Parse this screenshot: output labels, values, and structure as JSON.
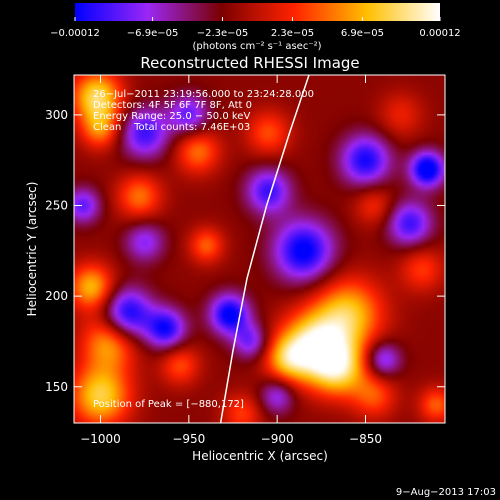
{
  "chart_data": {
    "type": "heatmap",
    "title": "Reconstructed RHESSI Image",
    "xlabel": "Heliocentric X (arcsec)",
    "ylabel": "Heliocentric Y (arcsec)",
    "xlim": [
      -1015,
      -805
    ],
    "ylim": [
      130,
      322
    ],
    "x_ticks": [
      -1000,
      -950,
      -900,
      -850
    ],
    "x_tick_labels": [
      "−1000",
      "−950",
      "−900",
      "−850"
    ],
    "y_ticks": [
      150,
      200,
      250,
      300
    ],
    "y_tick_labels": [
      "150",
      "200",
      "250",
      "300"
    ],
    "colorbar": {
      "range": [
        -0.00012,
        0.00012
      ],
      "ticks": [
        -0.00012,
        -6.9e-05,
        -2.3e-05,
        2.3e-05,
        6.9e-05,
        0.00012
      ],
      "tick_labels": [
        "−0.00012",
        "−6.9e−05",
        "−2.3e−05",
        "2.3e−05",
        "6.9e−05",
        "0.00012"
      ],
      "units_label": "(photons cm⁻² s⁻¹ asec⁻²)",
      "colors": [
        "#0000ff",
        "#9b27f5",
        "#7a0000",
        "#ff2200",
        "#ffbf00",
        "#ffffff"
      ]
    },
    "annotations": [
      "26−Jul−2011 23:19:56.000 to 23:24:28.000",
      "Detectors: 4F 5F 6F 7F 8F, Att 0",
      "Energy Range: 25.0 − 50.0 keV",
      "Clean    Total counts: 7.46E+03"
    ],
    "peak_label": "Position of Peak = [−880,172]",
    "peak": [
      -880,
      172
    ],
    "limb_curve": [
      [
        -932,
        130
      ],
      [
        -925,
        170
      ],
      [
        -917,
        210
      ],
      [
        -906,
        250
      ],
      [
        -893,
        290
      ],
      [
        -882,
        322
      ]
    ],
    "sources": [
      {
        "x": -880,
        "y": 172,
        "amp": 1.0,
        "sigma": 13
      },
      {
        "x": -860,
        "y": 190,
        "amp": 0.8,
        "sigma": 14
      },
      {
        "x": -865,
        "y": 160,
        "amp": 0.8,
        "sigma": 11
      },
      {
        "x": -895,
        "y": 165,
        "amp": 0.55,
        "sigma": 9
      },
      {
        "x": -1000,
        "y": 145,
        "amp": 0.85,
        "sigma": 12
      },
      {
        "x": -995,
        "y": 175,
        "amp": 0.7,
        "sigma": 11
      },
      {
        "x": -1005,
        "y": 205,
        "amp": 0.75,
        "sigma": 9
      },
      {
        "x": -1002,
        "y": 310,
        "amp": 0.9,
        "sigma": 10
      },
      {
        "x": -1000,
        "y": 292,
        "amp": 0.55,
        "sigma": 8
      },
      {
        "x": -978,
        "y": 255,
        "amp": 0.55,
        "sigma": 9
      },
      {
        "x": -945,
        "y": 280,
        "amp": 0.55,
        "sigma": 9
      },
      {
        "x": -940,
        "y": 228,
        "amp": 0.5,
        "sigma": 7
      },
      {
        "x": -955,
        "y": 162,
        "amp": 0.45,
        "sigma": 8
      },
      {
        "x": -905,
        "y": 290,
        "amp": 0.45,
        "sigma": 9
      },
      {
        "x": -845,
        "y": 250,
        "amp": 0.35,
        "sigma": 8
      },
      {
        "x": -818,
        "y": 215,
        "amp": 0.4,
        "sigma": 9
      },
      {
        "x": -845,
        "y": 145,
        "amp": 0.45,
        "sigma": 9
      },
      {
        "x": -810,
        "y": 140,
        "amp": 0.5,
        "sigma": 7
      },
      {
        "x": -830,
        "y": 300,
        "amp": 0.3,
        "sigma": 9
      },
      {
        "x": -920,
        "y": 135,
        "amp": 0.4,
        "sigma": 8
      },
      {
        "x": -985,
        "y": 190,
        "amp": -0.9,
        "sigma": 10
      },
      {
        "x": -963,
        "y": 182,
        "amp": -0.8,
        "sigma": 8
      },
      {
        "x": -975,
        "y": 290,
        "amp": -0.7,
        "sigma": 10
      },
      {
        "x": -950,
        "y": 300,
        "amp": -0.6,
        "sigma": 8
      },
      {
        "x": -927,
        "y": 190,
        "amp": -0.9,
        "sigma": 8
      },
      {
        "x": -915,
        "y": 175,
        "amp": -0.55,
        "sigma": 7
      },
      {
        "x": -885,
        "y": 225,
        "amp": -0.9,
        "sigma": 12
      },
      {
        "x": -905,
        "y": 258,
        "amp": -0.7,
        "sigma": 9
      },
      {
        "x": -850,
        "y": 275,
        "amp": -0.8,
        "sigma": 10
      },
      {
        "x": -815,
        "y": 270,
        "amp": -1.0,
        "sigma": 7
      },
      {
        "x": -825,
        "y": 240,
        "amp": -0.7,
        "sigma": 9
      },
      {
        "x": -840,
        "y": 165,
        "amp": -0.6,
        "sigma": 7
      },
      {
        "x": -975,
        "y": 230,
        "amp": -0.5,
        "sigma": 8
      },
      {
        "x": -1010,
        "y": 250,
        "amp": -0.6,
        "sigma": 7
      },
      {
        "x": -900,
        "y": 145,
        "amp": -0.5,
        "sigma": 7
      }
    ]
  },
  "footer": {
    "date_stamp": "9−Aug−2013 17:03"
  }
}
